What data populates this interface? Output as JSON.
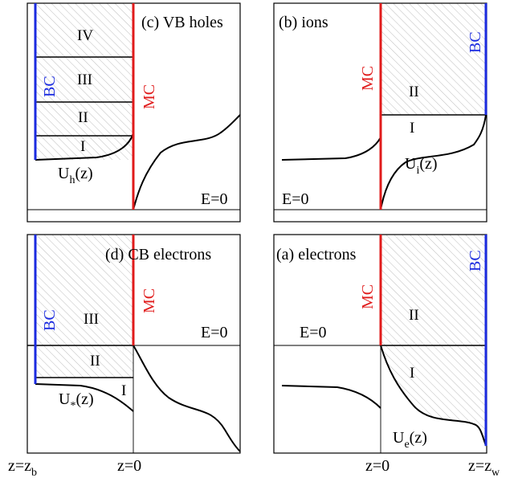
{
  "panels": {
    "c": {
      "title": "(c) VB holes",
      "mc": "MC",
      "bc": "BC",
      "regions": [
        "IV",
        "III",
        "II",
        "I"
      ],
      "potential": "U",
      "potential_sub": "h",
      "potential_arg": "(z)",
      "field": "E=0"
    },
    "b": {
      "title": "(b) ions",
      "mc": "MC",
      "bc": "BC",
      "regions": [
        "II",
        "I"
      ],
      "potential": "U",
      "potential_sub": "i",
      "potential_arg": "(z)",
      "field": "E=0"
    },
    "d": {
      "title": "(d) CB electrons",
      "mc": "MC",
      "bc": "BC",
      "regions": [
        "III",
        "II",
        "I"
      ],
      "potential": "U",
      "potential_sub": "*",
      "potential_arg": "(z)",
      "field": "E=0"
    },
    "a": {
      "title": "(a) electrons",
      "mc": "MC",
      "bc": "BC",
      "regions": [
        "II",
        "I"
      ],
      "potential": "U",
      "potential_sub": "e",
      "potential_arg": "(z)",
      "field": "E=0"
    }
  },
  "axis_labels": {
    "z_b": "z=z",
    "z_b_sub": "b",
    "z0_left": "z=0",
    "z0_right": "z=0",
    "z_w": "z=z",
    "z_w_sub": "w"
  },
  "colors": {
    "mc": "#e01b1b",
    "bc": "#1b2be0",
    "hatch": "#bdbdbd"
  }
}
